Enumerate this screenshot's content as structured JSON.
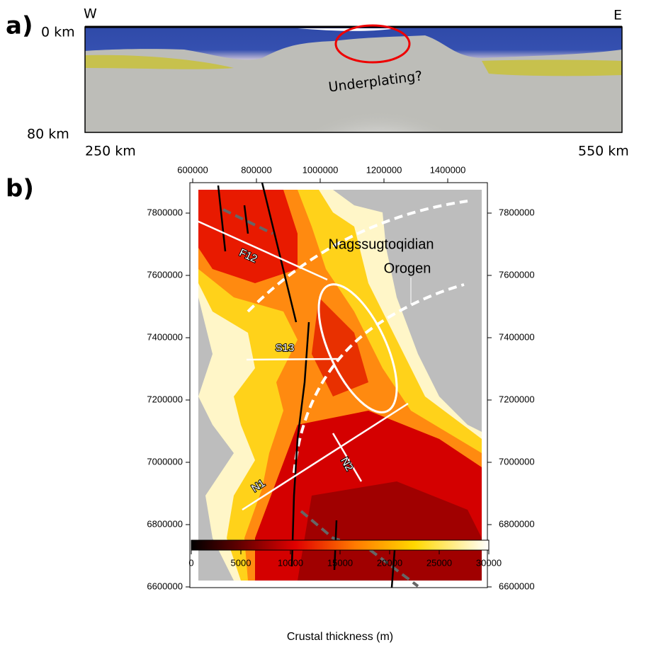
{
  "panel_a": {
    "label": "a)",
    "west": "W",
    "east": "E",
    "depth_top": "0 km",
    "depth_bottom": "80 km",
    "dist_left": "250 km",
    "dist_right": "550 km",
    "annotation": "Underplating?"
  },
  "panel_b": {
    "label": "b)",
    "xticks": [
      600000,
      800000,
      1000000,
      1200000,
      1400000
    ],
    "yticks": [
      6600000,
      6800000,
      7000000,
      7200000,
      7400000,
      7600000,
      7800000
    ],
    "profiles": [
      "F12",
      "S13",
      "N1",
      "N2"
    ],
    "annotation": [
      "Nagssugtoqidian",
      "Orogen"
    ],
    "colorbar": {
      "ticks": [
        0,
        5000,
        10000,
        15000,
        20000,
        25000,
        30000
      ],
      "label": "Crustal thickness (m)"
    }
  }
}
